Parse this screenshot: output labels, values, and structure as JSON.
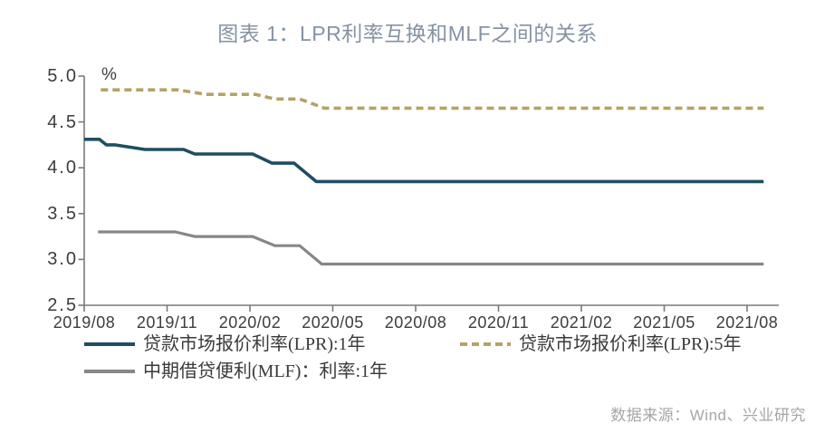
{
  "title": "图表 1：LPR利率互换和MLF之间的关系",
  "unit_label": "%",
  "source_note": "数据来源：Wind、兴业研究",
  "colors": {
    "title": "#8593a4",
    "lpr_1y": "#1f4e63",
    "lpr_5y": "#b4a269",
    "mlf_1y": "#878787",
    "axis": "#7a7a7a",
    "tick_label": "#3d3d3d",
    "source": "#a6a6a6"
  },
  "chart_data": {
    "type": "line",
    "title": "图表 1：LPR利率互换和MLF之间的关系",
    "xlabel": "",
    "ylabel": "%",
    "ylim": [
      2.5,
      5.0
    ],
    "yticks": [
      5.0,
      4.5,
      4.0,
      3.5,
      3.0,
      2.5
    ],
    "xtick_labels": [
      "2019/08",
      "2019/11",
      "2020/02",
      "2020/05",
      "2020/08",
      "2020/11",
      "2021/02",
      "2021/05",
      "2021/08"
    ],
    "xtick_months": [
      0,
      3,
      6,
      9,
      12,
      15,
      18,
      21,
      24
    ],
    "x_month_range": [
      0,
      24.6
    ],
    "grid": false,
    "legend_position": "bottom",
    "series": [
      {
        "name": "贷款市场报价利率(LPR):1年",
        "color": "#1f4e63",
        "dash": false,
        "points": [
          [
            0,
            4.31
          ],
          [
            0.55,
            4.31
          ],
          [
            0.8,
            4.25
          ],
          [
            1.1,
            4.25
          ],
          [
            2.2,
            4.2
          ],
          [
            3.6,
            4.2
          ],
          [
            4.0,
            4.15
          ],
          [
            6.1,
            4.15
          ],
          [
            6.8,
            4.05
          ],
          [
            7.6,
            4.05
          ],
          [
            8.4,
            3.85
          ],
          [
            24.6,
            3.85
          ]
        ]
      },
      {
        "name": "贷款市场报价利率(LPR):5年",
        "color": "#b4a269",
        "dash": true,
        "points": [
          [
            0.6,
            4.85
          ],
          [
            3.4,
            4.85
          ],
          [
            4.4,
            4.8
          ],
          [
            6.2,
            4.8
          ],
          [
            6.9,
            4.75
          ],
          [
            7.8,
            4.75
          ],
          [
            8.7,
            4.65
          ],
          [
            24.6,
            4.65
          ]
        ]
      },
      {
        "name": "中期借贷便利(MLF)：利率:1年",
        "color": "#878787",
        "dash": false,
        "points": [
          [
            0.5,
            3.3
          ],
          [
            3.3,
            3.3
          ],
          [
            4.0,
            3.25
          ],
          [
            6.1,
            3.25
          ],
          [
            6.9,
            3.15
          ],
          [
            7.8,
            3.15
          ],
          [
            8.6,
            2.95
          ],
          [
            24.6,
            2.95
          ]
        ]
      }
    ]
  }
}
